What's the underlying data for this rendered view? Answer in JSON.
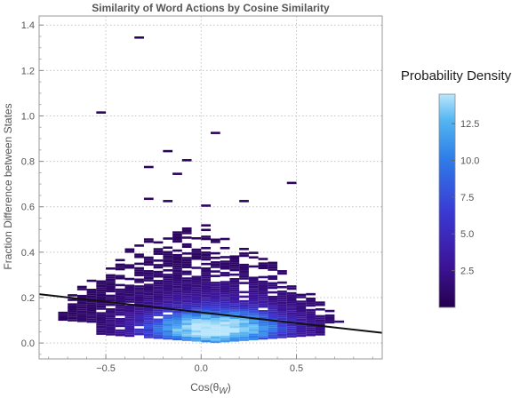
{
  "chart_data": {
    "type": "heatmap",
    "title": "Similarity of Word Actions by Cosine Similarity",
    "xlabel": "Cos(θ",
    "xlabel_sub": "W",
    "xlabel_end": ")",
    "ylabel": "Fraction Difference between States",
    "xlim": [
      -0.85,
      0.95
    ],
    "ylim": [
      -0.07,
      1.44
    ],
    "x_ticks": [
      {
        "value": -0.5,
        "label": "−0.5"
      },
      {
        "value": 0.0,
        "label": "0.0"
      },
      {
        "value": 0.5,
        "label": "0.5"
      }
    ],
    "y_ticks": [
      {
        "value": 0.0,
        "label": "0.0"
      },
      {
        "value": 0.2,
        "label": "0.2"
      },
      {
        "value": 0.4,
        "label": "0.4"
      },
      {
        "value": 0.6,
        "label": "0.6"
      },
      {
        "value": 0.8,
        "label": "0.8"
      },
      {
        "value": 1.0,
        "label": "1.0"
      },
      {
        "value": 1.2,
        "label": "1.2"
      },
      {
        "value": 1.4,
        "label": "1.4"
      }
    ],
    "grid": true,
    "bin_width_x": 0.05,
    "bin_width_y": 0.01,
    "density_bins": [
      {
        "x": -0.35,
        "y": 1.34,
        "d": 0.3
      },
      {
        "x": -0.55,
        "y": 1.01,
        "d": 0.3
      },
      {
        "x": 0.05,
        "y": 0.92,
        "d": 0.3
      },
      {
        "x": -0.2,
        "y": 0.84,
        "d": 0.3
      },
      {
        "x": -0.1,
        "y": 0.8,
        "d": 0.3
      },
      {
        "x": -0.3,
        "y": 0.77,
        "d": 0.3
      },
      {
        "x": -0.15,
        "y": 0.74,
        "d": 0.3
      },
      {
        "x": 0.45,
        "y": 0.7,
        "d": 0.3
      },
      {
        "x": -0.3,
        "y": 0.63,
        "d": 0.4
      },
      {
        "x": -0.2,
        "y": 0.62,
        "d": 0.4
      },
      {
        "x": 0.2,
        "y": 0.62,
        "d": 0.3
      },
      {
        "x": 0.0,
        "y": 0.6,
        "d": 0.3
      }
    ],
    "cloud": {
      "center_x": 0.05,
      "core_y": 0.06,
      "x_extent": [
        -0.75,
        0.85
      ],
      "peak_density": 14.5
    },
    "fit_line": {
      "x": [
        -0.85,
        0.95
      ],
      "y": [
        0.215,
        0.045
      ]
    },
    "colorbar": {
      "title": "Probability Density",
      "range": [
        0,
        14.5
      ],
      "ticks": [
        {
          "value": 2.5,
          "label": "2.5"
        },
        {
          "value": 5.0,
          "label": "5.0"
        },
        {
          "value": 7.5,
          "label": "7.5"
        },
        {
          "value": 10.0,
          "label": "10.0"
        },
        {
          "value": 12.5,
          "label": "12.5"
        }
      ],
      "colors": [
        "#26004d",
        "#3d1499",
        "#3a3ad4",
        "#2f7ee8",
        "#55b6f2",
        "#b9e6fb"
      ]
    }
  }
}
